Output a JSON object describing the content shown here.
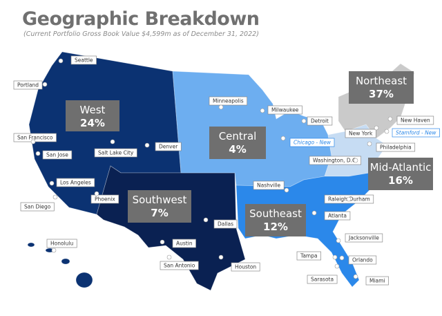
{
  "header": {
    "title": "Geographic Breakdown",
    "subtitle": "(Current Portfolio Gross Book Value $4,599m as of December 31, 2022)"
  },
  "regions": [
    {
      "name": "West",
      "share": "24%"
    },
    {
      "name": "Central",
      "share": "4%"
    },
    {
      "name": "Southwest",
      "share": "7%"
    },
    {
      "name": "Southeast",
      "share": "12%"
    },
    {
      "name": "Mid-Atlantic",
      "share": "16%"
    },
    {
      "name": "Northeast",
      "share": "37%"
    }
  ],
  "cities": [
    {
      "name": "Seattle"
    },
    {
      "name": "Portland"
    },
    {
      "name": "San Francisco"
    },
    {
      "name": "San Jose"
    },
    {
      "name": "Salt Lake City"
    },
    {
      "name": "Denver"
    },
    {
      "name": "Los Angeles"
    },
    {
      "name": "San Diego"
    },
    {
      "name": "Phoenix"
    },
    {
      "name": "Honolulu"
    },
    {
      "name": "Austin"
    },
    {
      "name": "San Antonio"
    },
    {
      "name": "Dallas"
    },
    {
      "name": "Houston"
    },
    {
      "name": "Minneapolis"
    },
    {
      "name": "Milwaukee"
    },
    {
      "name": "Detroit"
    },
    {
      "name": "Chicago - New"
    },
    {
      "name": "New York"
    },
    {
      "name": "New Haven"
    },
    {
      "name": "Stamford - New"
    },
    {
      "name": "Philadelphia"
    },
    {
      "name": "Washington, D.C."
    },
    {
      "name": "Nashville"
    },
    {
      "name": "Raleigh-Durham"
    },
    {
      "name": "Atlanta"
    },
    {
      "name": "Jacksonville"
    },
    {
      "name": "Tampa"
    },
    {
      "name": "Orlando"
    },
    {
      "name": "Sarasota"
    },
    {
      "name": "Miami"
    }
  ]
}
